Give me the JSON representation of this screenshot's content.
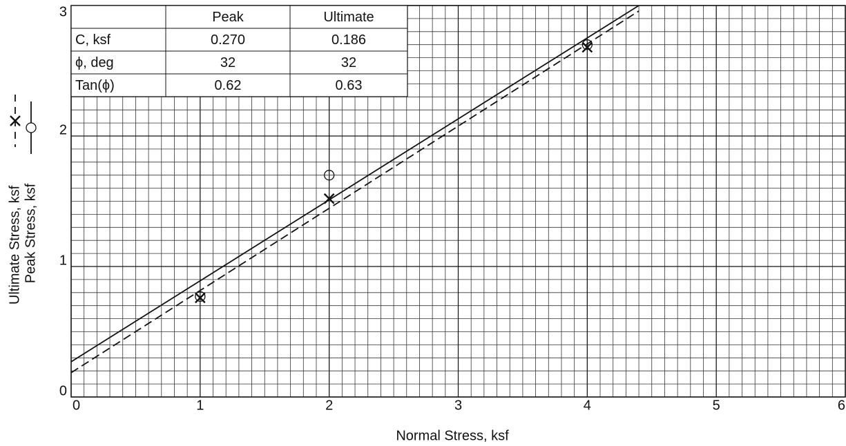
{
  "chart_data": {
    "type": "scatter",
    "xlabel": "Normal Stress, ksf",
    "xlim": [
      0,
      6
    ],
    "xticks": [
      0,
      1,
      2,
      3,
      4,
      5,
      6
    ],
    "ylim": [
      0,
      3
    ],
    "yticks": [
      0,
      1,
      2,
      3
    ],
    "grid": true,
    "minor_grid_divisions": 10,
    "series": [
      {
        "name": "Ultimate Stress, ksf",
        "marker": "x",
        "dash": true,
        "color": "#111",
        "x": [
          1,
          2,
          4
        ],
        "values": [
          0.76,
          1.52,
          2.68
        ],
        "fit": {
          "x": [
            0,
            4.4
          ],
          "values": [
            0.186,
            2.958
          ]
        }
      },
      {
        "name": "Peak Stress, ksf",
        "marker": "circle",
        "dash": false,
        "color": "#111",
        "x": [
          1,
          2,
          4
        ],
        "values": [
          0.77,
          1.7,
          2.7
        ],
        "fit": {
          "x": [
            0,
            4.4
          ],
          "values": [
            0.27,
            3.0
          ]
        }
      }
    ],
    "table": {
      "header": [
        "Peak",
        "Ultimate"
      ],
      "rows": [
        {
          "label": "C, ksf",
          "cells": [
            "0.270",
            "0.186"
          ]
        },
        {
          "label": "ϕ, deg",
          "cells": [
            "32",
            "32"
          ]
        },
        {
          "label": "Tan(ϕ)",
          "cells": [
            "0.62",
            "0.63"
          ]
        }
      ]
    }
  }
}
